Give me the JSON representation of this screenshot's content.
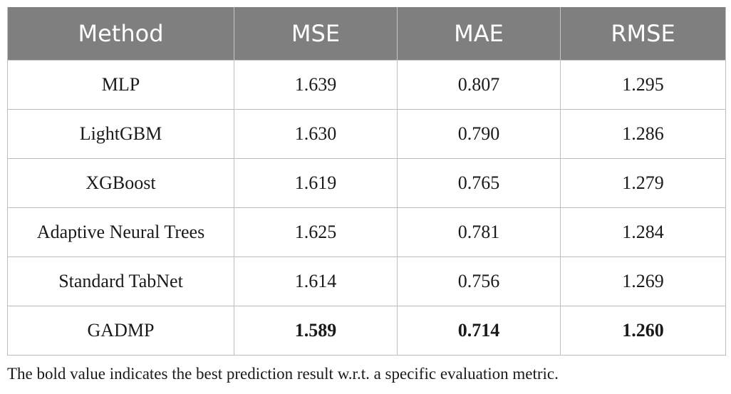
{
  "table": {
    "headers": [
      "Method",
      "MSE",
      "MAE",
      "RMSE"
    ],
    "rows": [
      {
        "method": "MLP",
        "mse": "1.639",
        "mae": "0.807",
        "rmse": "1.295"
      },
      {
        "method": "LightGBM",
        "mse": "1.630",
        "mae": "0.790",
        "rmse": "1.286"
      },
      {
        "method": "XGBoost",
        "mse": "1.619",
        "mae": "0.765",
        "rmse": "1.279"
      },
      {
        "method": "Adaptive Neural Trees",
        "mse": "1.625",
        "mae": "0.781",
        "rmse": "1.284"
      },
      {
        "method": "Standard TabNet",
        "mse": "1.614",
        "mae": "0.756",
        "rmse": "1.269"
      },
      {
        "method": "GADMP",
        "mse": "1.589",
        "mae": "0.714",
        "rmse": "1.260",
        "bold": true
      }
    ]
  },
  "footnote": "The bold value indicates the best prediction result w.r.t. a specific evaluation metric.",
  "colors": {
    "header_background": "#7f7f7f",
    "header_text": "#ffffff",
    "cell_border": "#bdbdbd"
  }
}
